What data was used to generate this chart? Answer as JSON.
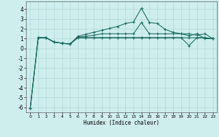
{
  "xlabel": "Humidex (Indice chaleur)",
  "ylabel": "",
  "bg_color": "#ceeeed",
  "line_color": "#1a6b61",
  "grid_color": "#aed8d5",
  "xlim": [
    -0.5,
    23.5
  ],
  "ylim": [
    -6.5,
    4.8
  ],
  "xticks": [
    0,
    1,
    2,
    3,
    4,
    5,
    6,
    7,
    8,
    9,
    10,
    11,
    12,
    13,
    14,
    15,
    16,
    17,
    18,
    19,
    20,
    21,
    22,
    23
  ],
  "yticks": [
    -6,
    -5,
    -4,
    -3,
    -2,
    -1,
    0,
    1,
    2,
    3,
    4
  ],
  "line1_x": [
    0,
    1,
    2,
    3,
    4,
    5,
    6,
    7,
    8,
    9,
    10,
    11,
    12,
    13,
    14,
    15,
    16,
    17,
    18,
    19,
    20,
    21,
    22,
    23
  ],
  "line1_y": [
    -6.1,
    1.1,
    1.1,
    0.65,
    0.55,
    0.45,
    1.1,
    1.1,
    1.1,
    1.1,
    1.1,
    1.1,
    1.1,
    1.1,
    1.1,
    1.1,
    1.1,
    1.1,
    1.1,
    1.1,
    1.1,
    1.1,
    1.1,
    1.0
  ],
  "line2_x": [
    0,
    1,
    2,
    3,
    4,
    5,
    6,
    7,
    8,
    9,
    10,
    11,
    12,
    13,
    14,
    15,
    16,
    17,
    18,
    19,
    20,
    21,
    22,
    23
  ],
  "line2_y": [
    -6.1,
    1.1,
    1.1,
    0.65,
    0.55,
    0.45,
    1.25,
    1.45,
    1.65,
    1.85,
    2.05,
    2.25,
    2.55,
    2.7,
    4.1,
    2.65,
    2.55,
    1.95,
    1.65,
    1.5,
    1.5,
    1.35,
    1.5,
    1.0
  ],
  "line3_x": [
    0,
    1,
    2,
    3,
    4,
    5,
    6,
    7,
    8,
    9,
    10,
    11,
    12,
    13,
    14,
    15,
    16,
    17,
    18,
    19,
    20,
    21,
    22,
    23
  ],
  "line3_y": [
    -6.1,
    1.1,
    1.1,
    0.65,
    0.55,
    0.45,
    1.15,
    1.25,
    1.35,
    1.5,
    1.5,
    1.5,
    1.5,
    1.5,
    2.65,
    1.5,
    1.5,
    1.5,
    1.5,
    1.5,
    1.3,
    1.5,
    1.0,
    1.0
  ],
  "line4_x": [
    1,
    2,
    3,
    4,
    5,
    6,
    7,
    8,
    9,
    10,
    11,
    12,
    13,
    14,
    15,
    16,
    17,
    18,
    19,
    20,
    21,
    22,
    23
  ],
  "line4_y": [
    1.1,
    1.1,
    0.65,
    0.55,
    0.45,
    1.1,
    1.1,
    1.1,
    1.1,
    1.1,
    1.1,
    1.1,
    1.1,
    1.1,
    1.1,
    1.1,
    1.1,
    1.1,
    1.1,
    0.3,
    1.1,
    1.1,
    1.0
  ],
  "marker": "+",
  "markersize": 3,
  "markeredgewidth": 0.8,
  "linewidth": 0.8
}
